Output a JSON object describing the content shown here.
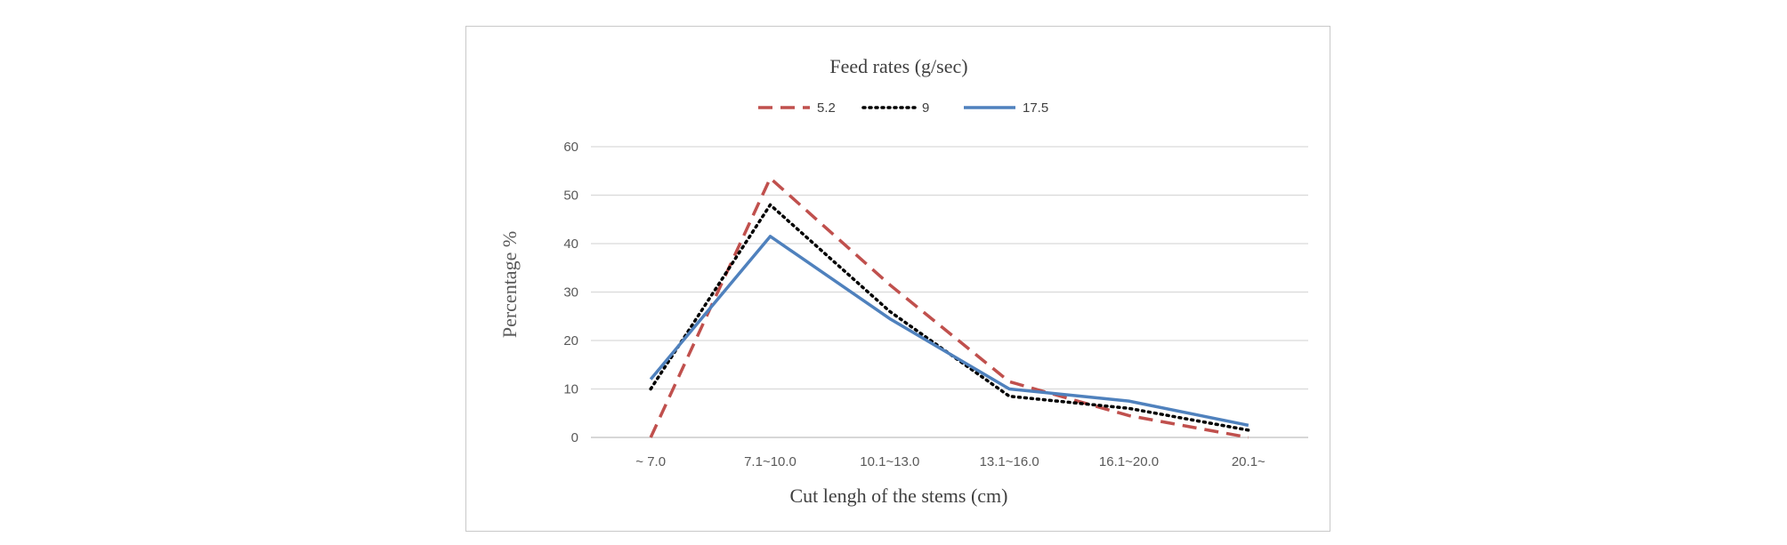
{
  "chart_data": {
    "type": "line",
    "legend_title": "Feed rates (g/sec)",
    "legend_position": "top",
    "xlabel": "Cut lengh  of the stems (cm)",
    "ylabel": "Percentage %",
    "categories": [
      "~ 7.0",
      "7.1~10.0",
      "10.1~13.0",
      "13.1~16.0",
      "16.1~20.0",
      "20.1~"
    ],
    "yticks": [
      "0",
      "10",
      "20",
      "30",
      "40",
      "50",
      "60"
    ],
    "ylim": [
      0,
      60
    ],
    "grid": "horizontal",
    "series": [
      {
        "name": "5.2",
        "values": [
          0,
          53.5,
          31.5,
          11.5,
          4.5,
          0
        ],
        "color": "#c0504d",
        "style": "dashed"
      },
      {
        "name": "9",
        "values": [
          10,
          48,
          26,
          8.5,
          6,
          1.5
        ],
        "color": "#000000",
        "style": "dotted"
      },
      {
        "name": "17.5",
        "values": [
          12,
          41.5,
          24.5,
          10,
          7.5,
          2.5
        ],
        "color": "#4f81bd",
        "style": "solid"
      }
    ]
  }
}
